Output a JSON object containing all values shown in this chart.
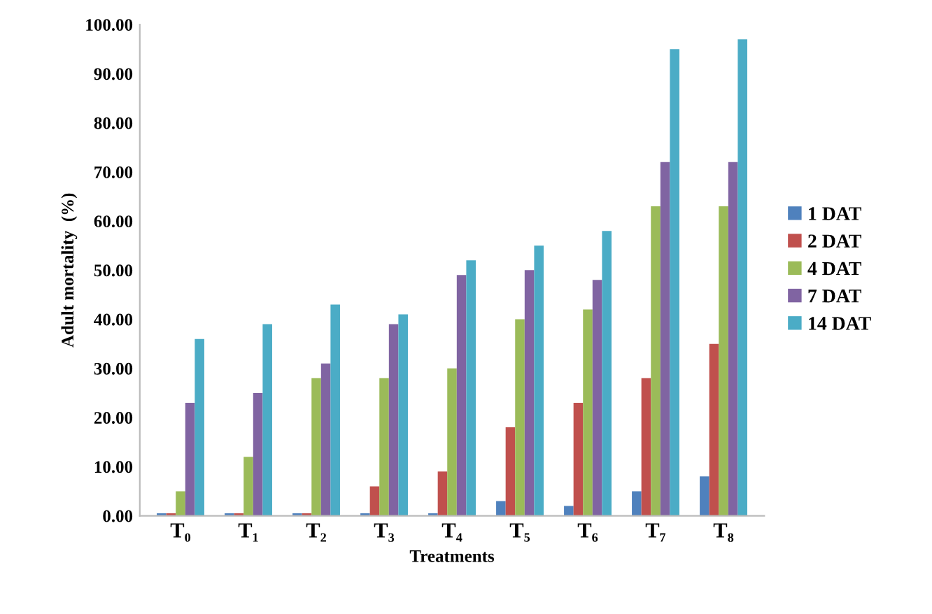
{
  "chart_data": {
    "type": "bar",
    "xlabel": "Treatments",
    "ylabel": "Adult mortality  (%)",
    "categories": [
      "T₀",
      "T₁",
      "T₂",
      "T₃",
      "T₄",
      "T₅",
      "T₆",
      "T₇",
      "T₈"
    ],
    "series": [
      {
        "name": "1 DAT",
        "color": "#4f81bd",
        "values": [
          0.5,
          0.5,
          0.5,
          0.5,
          0.5,
          3,
          2,
          5,
          8
        ]
      },
      {
        "name": "2 DAT",
        "color": "#c0504d",
        "values": [
          0.5,
          0.5,
          0.5,
          6,
          9,
          18,
          23,
          28,
          35
        ]
      },
      {
        "name": "4 DAT",
        "color": "#9bbb59",
        "values": [
          5,
          12,
          28,
          28,
          30,
          40,
          42,
          63,
          63
        ]
      },
      {
        "name": "7 DAT",
        "color": "#8064a2",
        "values": [
          23,
          25,
          31,
          39,
          49,
          50,
          48,
          72,
          72
        ]
      },
      {
        "name": "14 DAT",
        "color": "#4bacc6",
        "values": [
          36,
          39,
          43,
          41,
          52,
          55,
          58,
          95,
          97
        ]
      }
    ],
    "ylim": [
      0,
      100
    ],
    "yticks": [
      {
        "value": 0,
        "label": "0.00"
      },
      {
        "value": 10,
        "label": "10.00"
      },
      {
        "value": 20,
        "label": "20.00"
      },
      {
        "value": 30,
        "label": "30.00"
      },
      {
        "value": 40,
        "label": "40.00"
      },
      {
        "value": 50,
        "label": "50.00"
      },
      {
        "value": 60,
        "label": "60.00"
      },
      {
        "value": 70,
        "label": "70.00"
      },
      {
        "value": 80,
        "label": "80.00"
      },
      {
        "value": 90,
        "label": "90.00"
      },
      {
        "value": 100,
        "label": "100.00"
      }
    ],
    "legend": "right",
    "grid": false
  }
}
